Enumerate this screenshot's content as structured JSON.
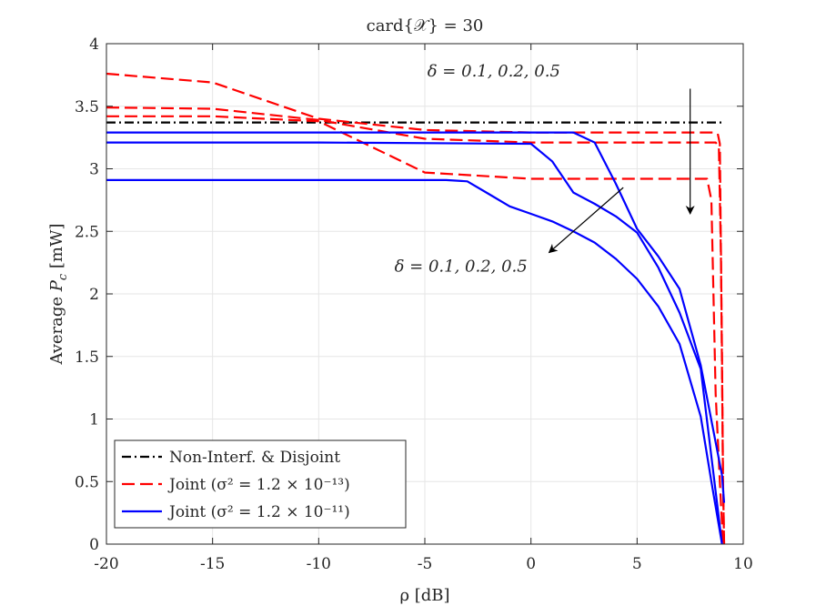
{
  "chart_data": {
    "type": "line",
    "title": "card{𝒳} = 30",
    "xlabel": "ρ [dB]",
    "ylabel": "Average P_c [mW]",
    "ylabel_parts": {
      "prefix": "Average ",
      "var": "P",
      "sub": "c",
      "suffix": " [mW]"
    },
    "xlim": [
      -20,
      10
    ],
    "ylim": [
      0,
      4
    ],
    "xticks": [
      -20,
      -15,
      -10,
      -5,
      0,
      5,
      10
    ],
    "yticks": [
      0,
      0.5,
      1,
      1.5,
      2,
      2.5,
      3,
      3.5,
      4
    ],
    "xtick_labels": [
      "-20",
      "-15",
      "-10",
      "-5",
      "0",
      "5",
      "10"
    ],
    "ytick_labels": [
      "0",
      "0.5",
      "1",
      "1.5",
      "2",
      "2.5",
      "3",
      "3.5",
      "4"
    ],
    "grid": true,
    "legend_position": "bottom-left",
    "legend": [
      {
        "text": "Non-Interf. & Disjoint",
        "style": "dashdot",
        "color": "#000000"
      },
      {
        "text": "Joint (σ² = 1.2 × 10⁻¹³)",
        "style": "dashed",
        "color": "#ff0000"
      },
      {
        "text": "Joint (σ² = 1.2 × 10⁻¹¹)",
        "style": "solid",
        "color": "#0000ff"
      }
    ],
    "series": [
      {
        "name": "Non-Interf. & Disjoint",
        "group": "baseline",
        "color": "#000000",
        "style": "dashdot",
        "x": [
          -20,
          9.1
        ],
        "y": [
          3.37,
          3.37
        ]
      },
      {
        "name": "Joint σ²=1.2e-13 δ=0.1",
        "group": "joint-13",
        "color": "#ff0000",
        "style": "dashed",
        "x": [
          -20,
          -15,
          -10,
          -5,
          0,
          5,
          8,
          8.6,
          8.8,
          8.9,
          9.0,
          9.05,
          9.1
        ],
        "y": [
          3.76,
          3.69,
          3.4,
          3.31,
          3.29,
          3.29,
          3.29,
          3.29,
          3.28,
          3.2,
          1.5,
          0.5,
          0.0
        ]
      },
      {
        "name": "Joint σ²=1.2e-13 δ=0.2",
        "group": "joint-13",
        "color": "#ff0000",
        "style": "dashed",
        "x": [
          -20,
          -15,
          -10,
          -5,
          0,
          5,
          8,
          8.7,
          8.85,
          8.95,
          9.05,
          9.1
        ],
        "y": [
          3.49,
          3.48,
          3.39,
          3.24,
          3.21,
          3.21,
          3.21,
          3.21,
          3.18,
          2.3,
          0.5,
          0.0
        ]
      },
      {
        "name": "Joint σ²=1.2e-13 δ=0.5",
        "group": "joint-13",
        "color": "#ff0000",
        "style": "dashed",
        "x": [
          -20,
          -15,
          -10,
          -5,
          0,
          5,
          8,
          8.3,
          8.5,
          8.7,
          8.9,
          9.05
        ],
        "y": [
          3.42,
          3.42,
          3.38,
          2.97,
          2.92,
          2.92,
          2.92,
          2.92,
          2.75,
          1.2,
          0.5,
          0.0
        ]
      },
      {
        "name": "Joint σ²=1.2e-11 δ=0.1",
        "group": "joint-11",
        "color": "#0000ff",
        "style": "solid",
        "x": [
          -20,
          -10,
          0,
          2,
          3,
          4,
          5,
          6,
          7,
          8,
          9,
          9.1
        ],
        "y": [
          3.29,
          3.29,
          3.29,
          3.29,
          3.21,
          2.88,
          2.52,
          2.3,
          2.04,
          1.43,
          0.55,
          0.33
        ]
      },
      {
        "name": "Joint σ²=1.2e-11 δ=0.2",
        "group": "joint-11",
        "color": "#0000ff",
        "style": "solid",
        "x": [
          -20,
          -10,
          0,
          1,
          2,
          3,
          4,
          5,
          6,
          7,
          8,
          9
        ],
        "y": [
          3.21,
          3.21,
          3.2,
          3.06,
          2.81,
          2.72,
          2.62,
          2.49,
          2.21,
          1.85,
          1.4,
          0.0
        ]
      },
      {
        "name": "Joint σ²=1.2e-11 δ=0.5",
        "group": "joint-11",
        "color": "#0000ff",
        "style": "solid",
        "x": [
          -20,
          -10,
          -4,
          -3,
          -2,
          -1,
          0,
          1,
          2,
          3,
          4,
          5,
          6,
          7,
          8,
          8.5,
          9
        ],
        "y": [
          2.91,
          2.91,
          2.91,
          2.9,
          2.8,
          2.7,
          2.64,
          2.58,
          2.5,
          2.41,
          2.28,
          2.12,
          1.9,
          1.6,
          1.02,
          0.5,
          0.0
        ]
      }
    ],
    "annotations": [
      {
        "text": "δ = 0.1, 0.2, 0.5",
        "label_at": [
          -1.75,
          3.74
        ],
        "arrow_from": [
          7.5,
          3.64
        ],
        "arrow_to": [
          7.5,
          2.64
        ]
      },
      {
        "text": "δ = 0.1, 0.2, 0.5",
        "label_at": [
          -3.3,
          2.18
        ],
        "arrow_from": [
          4.35,
          2.85
        ],
        "arrow_to": [
          0.85,
          2.33
        ]
      }
    ]
  }
}
